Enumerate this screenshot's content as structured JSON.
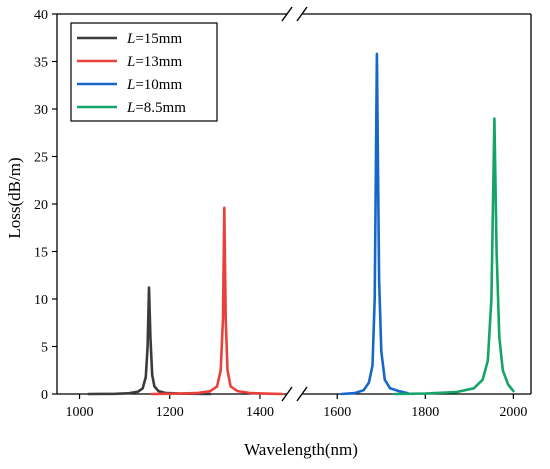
{
  "chart_data": {
    "type": "line",
    "title": "",
    "xlabel": "Wavelength(nm)",
    "ylabel": "Loss(dB/m)",
    "ylim": [
      0,
      40
    ],
    "y_ticks": [
      0,
      5,
      10,
      15,
      20,
      25,
      30,
      35,
      40
    ],
    "x_axis_break": true,
    "x_segments": [
      {
        "range": [
          950,
          1460
        ],
        "ticks": [
          1000,
          1200,
          1400
        ]
      },
      {
        "range": [
          1520,
          2040
        ],
        "ticks": [
          1600,
          1800,
          2000
        ]
      }
    ],
    "grid": false,
    "legend_placement": "top-left",
    "series": [
      {
        "name": "L=15mm",
        "name_italic": "L",
        "name_rest": "=15mm",
        "color": "#3b3b3b",
        "points": [
          [
            1020,
            0
          ],
          [
            1080,
            0.02
          ],
          [
            1110,
            0.08
          ],
          [
            1130,
            0.25
          ],
          [
            1140,
            0.6
          ],
          [
            1147,
            1.8
          ],
          [
            1151,
            5
          ],
          [
            1154,
            11.2
          ],
          [
            1157,
            6
          ],
          [
            1161,
            2
          ],
          [
            1166,
            0.8
          ],
          [
            1175,
            0.3
          ],
          [
            1190,
            0.12
          ],
          [
            1220,
            0.05
          ],
          [
            1260,
            0.02
          ],
          [
            1290,
            0
          ]
        ]
      },
      {
        "name": "L=13mm",
        "name_italic": "L",
        "name_rest": "=13mm",
        "color": "#e8413c",
        "points": [
          [
            1160,
            0
          ],
          [
            1210,
            0.03
          ],
          [
            1260,
            0.1
          ],
          [
            1290,
            0.3
          ],
          [
            1305,
            0.8
          ],
          [
            1313,
            2.5
          ],
          [
            1318,
            8
          ],
          [
            1321,
            19.6
          ],
          [
            1324,
            8
          ],
          [
            1328,
            2.5
          ],
          [
            1335,
            0.8
          ],
          [
            1350,
            0.3
          ],
          [
            1380,
            0.1
          ],
          [
            1420,
            0.03
          ],
          [
            1450,
            0
          ]
        ]
      },
      {
        "name": "L=10mm",
        "name_italic": "L",
        "name_rest": "=10mm",
        "color": "#1767c8",
        "points": [
          [
            1610,
            0
          ],
          [
            1640,
            0.1
          ],
          [
            1660,
            0.4
          ],
          [
            1672,
            1.2
          ],
          [
            1680,
            3
          ],
          [
            1685,
            10
          ],
          [
            1690,
            35.8
          ],
          [
            1695,
            12
          ],
          [
            1700,
            4.5
          ],
          [
            1708,
            1.5
          ],
          [
            1720,
            0.6
          ],
          [
            1740,
            0.3
          ],
          [
            1760,
            0.1
          ]
        ]
      },
      {
        "name": "L=8.5mm",
        "name_italic": "L",
        "name_rest": "=8.5mm",
        "color": "#16a368",
        "points": [
          [
            1730,
            0
          ],
          [
            1800,
            0.05
          ],
          [
            1870,
            0.2
          ],
          [
            1910,
            0.6
          ],
          [
            1930,
            1.5
          ],
          [
            1942,
            3.5
          ],
          [
            1950,
            10
          ],
          [
            1957,
            29
          ],
          [
            1962,
            15
          ],
          [
            1968,
            6
          ],
          [
            1976,
            2.5
          ],
          [
            1988,
            1
          ],
          [
            2000,
            0.3
          ]
        ]
      }
    ]
  }
}
